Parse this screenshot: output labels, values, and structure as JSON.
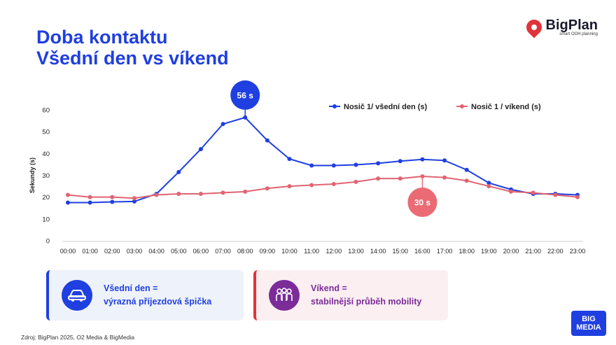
{
  "header": {
    "title_line1": "Doba kontaktu",
    "title_line2": "Všední den vs víkend"
  },
  "logo": {
    "name": "BigPlan",
    "tagline": "smart OOH planning",
    "icon": "map-pin-icon"
  },
  "colors": {
    "weekday": "#1f3fe0",
    "weekend": "#e06472",
    "weekday_peak_badge": "#1f3fe0",
    "weekend_peak_badge": "#ea6b73"
  },
  "chart_data": {
    "type": "line",
    "ylabel": "Sekundy (s)",
    "xlabel": "",
    "ylim": [
      0,
      60
    ],
    "yticks": [
      0,
      10,
      20,
      30,
      40,
      50,
      60
    ],
    "grid": false,
    "legend_position": "top-right",
    "categories": [
      "00:00",
      "01:00",
      "02:00",
      "03:00",
      "04:00",
      "05:00",
      "06:00",
      "07:00",
      "08:00",
      "09:00",
      "10:00",
      "11:00",
      "12:00",
      "13:00",
      "14:00",
      "15:00",
      "16:00",
      "17:00",
      "18:00",
      "19:00",
      "20:00",
      "21:00",
      "22:00",
      "23:00"
    ],
    "series": [
      {
        "name": "Nosič 1/ všední den (s)",
        "values": [
          17.5,
          17.5,
          17.8,
          18,
          21.5,
          31.5,
          42,
          53.5,
          56.5,
          46,
          37.5,
          34.5,
          34.5,
          34.8,
          35.5,
          36.5,
          37.3,
          36.8,
          32.5,
          26.5,
          23.5,
          21.5,
          21.5,
          21
        ]
      },
      {
        "name": "Nosič 1 / víkend (s)",
        "values": [
          21,
          20,
          20,
          19.5,
          21,
          21.5,
          21.5,
          22,
          22.5,
          24,
          25,
          25.5,
          26,
          27,
          28.5,
          28.5,
          29.5,
          29,
          27.5,
          25,
          22.5,
          22,
          21,
          20
        ]
      }
    ],
    "annotations": [
      {
        "label": "56 s",
        "series": 0,
        "category": "08:00"
      },
      {
        "label": "30 s",
        "series": 1,
        "category": "16:00"
      }
    ]
  },
  "cards": [
    {
      "icon": "car-icon",
      "line1": "Všední den =",
      "line2": "výrazná příjezdová špička"
    },
    {
      "icon": "people-group-icon",
      "line1": "Víkend =",
      "line2": "stabilnější průběh mobility"
    }
  ],
  "footer": {
    "source": "Zdroj: BigPlan 2025, O2 Media & BigMedia",
    "brand_line1": "BIG",
    "brand_line2": "MEDIA"
  }
}
